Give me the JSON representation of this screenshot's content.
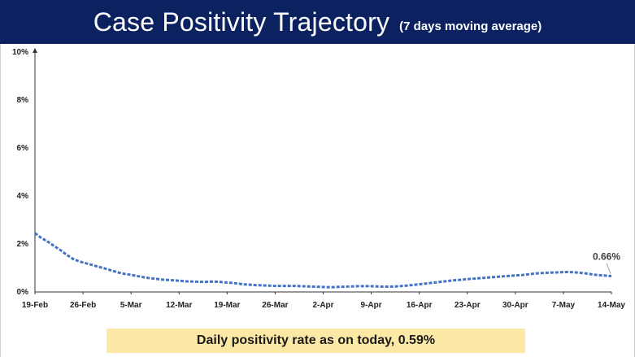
{
  "header": {
    "title": "Case Positivity Trajectory",
    "subtitle": "(7 days moving average)"
  },
  "footer": {
    "text": "Daily positivity rate as on today, 0.59%"
  },
  "colors": {
    "banner": "#0b2160",
    "line": "#4472c4",
    "footer_bg": "#fde9a6"
  },
  "chart_data": {
    "type": "line",
    "title": "Case Positivity Trajectory",
    "subtitle": "(7 days moving average)",
    "xlabel": "",
    "ylabel": "",
    "ylim": [
      0,
      10
    ],
    "yticks": [
      0,
      2,
      4,
      6,
      8,
      10
    ],
    "ytick_labels": [
      "0%",
      "2%",
      "4%",
      "6%",
      "8%",
      "10%"
    ],
    "xtick_labels": [
      "19-Feb",
      "26-Feb",
      "5-Mar",
      "12-Mar",
      "19-Mar",
      "26-Mar",
      "2-Apr",
      "9-Apr",
      "16-Apr",
      "23-Apr",
      "30-Apr",
      "7-May",
      "14-May"
    ],
    "grid": false,
    "line_style": "dashed",
    "series": [
      {
        "values": [
          2.45,
          2.25,
          2.1,
          1.92,
          1.75,
          1.55,
          1.38,
          1.27,
          1.2,
          1.13,
          1.05,
          0.98,
          0.9,
          0.82,
          0.76,
          0.72,
          0.67,
          0.62,
          0.58,
          0.55,
          0.52,
          0.5,
          0.48,
          0.46,
          0.44,
          0.43,
          0.42,
          0.42,
          0.43,
          0.42,
          0.4,
          0.38,
          0.35,
          0.32,
          0.3,
          0.28,
          0.27,
          0.26,
          0.25,
          0.25,
          0.25,
          0.25,
          0.24,
          0.23,
          0.22,
          0.21,
          0.2,
          0.2,
          0.21,
          0.22,
          0.23,
          0.24,
          0.24,
          0.24,
          0.23,
          0.22,
          0.22,
          0.23,
          0.25,
          0.27,
          0.3,
          0.33,
          0.36,
          0.39,
          0.42,
          0.45,
          0.48,
          0.5,
          0.53,
          0.55,
          0.57,
          0.59,
          0.61,
          0.63,
          0.65,
          0.67,
          0.69,
          0.71,
          0.74,
          0.77,
          0.79,
          0.8,
          0.81,
          0.82,
          0.83,
          0.82,
          0.8,
          0.77,
          0.73,
          0.7,
          0.68,
          0.66
        ]
      }
    ],
    "annotations": [
      {
        "text": "0.66%",
        "x": "14-May",
        "y": 0.66
      }
    ]
  }
}
